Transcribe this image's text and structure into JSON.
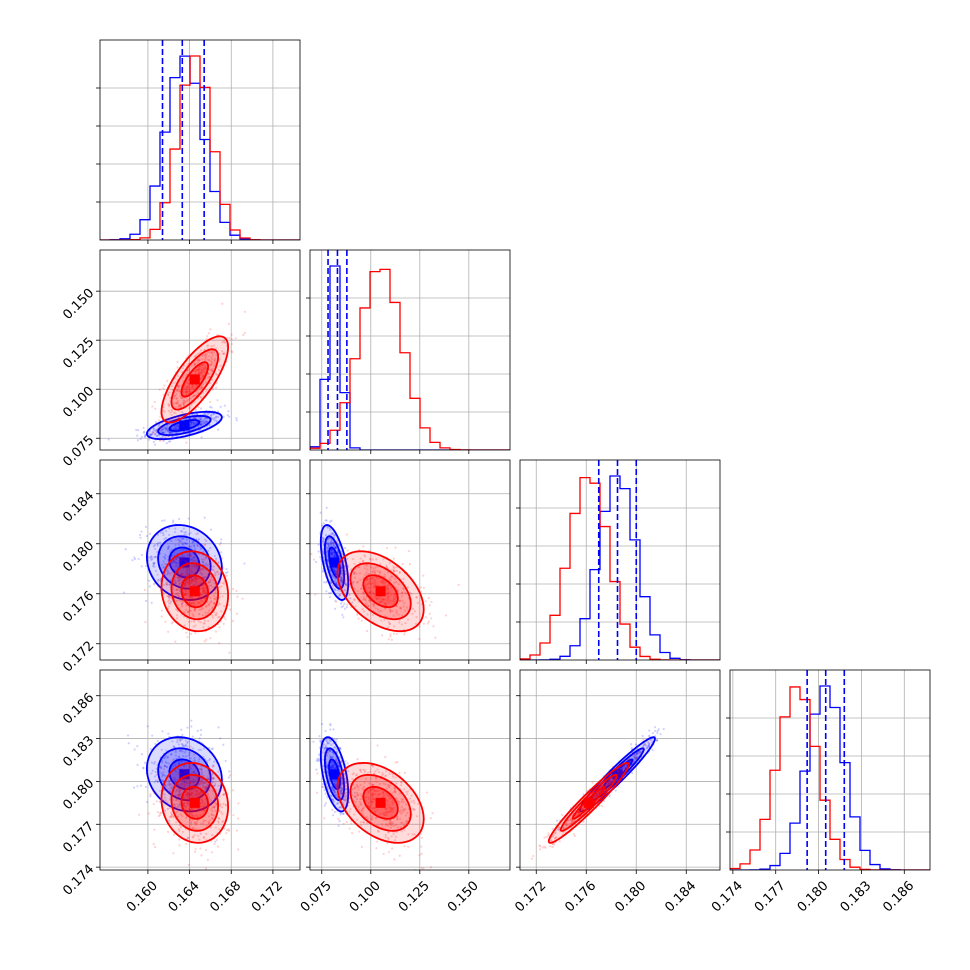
{
  "chart_data": {
    "type": "corner",
    "grid": true,
    "colors": {
      "series_a": "#0000ff",
      "series_b": "#ff0000"
    },
    "params": [
      {
        "id": "p0",
        "range": [
          0.1554,
          0.1746
        ],
        "ticks": [
          0.16,
          0.164,
          0.168,
          0.172
        ],
        "tick_labels": [
          "0.160",
          "0.164",
          "0.168",
          "0.172"
        ]
      },
      {
        "id": "p1",
        "range": [
          0.069,
          0.171
        ],
        "ticks": [
          0.075,
          0.1,
          0.125,
          0.15
        ],
        "tick_labels": [
          "0.075",
          "0.100",
          "0.125",
          "0.150"
        ]
      },
      {
        "id": "p2",
        "range": [
          0.1707,
          0.1867
        ],
        "ticks": [
          0.172,
          0.176,
          0.18,
          0.184
        ],
        "tick_labels": [
          "0.172",
          "0.176",
          "0.180",
          "0.184"
        ]
      },
      {
        "id": "p3",
        "range": [
          0.1738,
          0.1878
        ],
        "ticks": [
          0.174,
          0.177,
          0.18,
          0.183,
          0.186
        ],
        "tick_labels": [
          "0.174",
          "0.177",
          "0.180",
          "0.183",
          "0.186"
        ]
      }
    ],
    "series": [
      {
        "color": "#0000ff",
        "mean": [
          0.1635,
          0.0815,
          0.1785,
          0.1805
        ],
        "std": [
          0.0018,
          0.0035,
          0.0015,
          0.0013
        ],
        "quantiles": [
          [
            0.1614,
            0.1633,
            0.1654
          ],
          [
            0.0782,
            0.083,
            0.0878
          ],
          [
            0.177,
            0.1785,
            0.18
          ],
          [
            0.1792,
            0.1805,
            0.1818
          ]
        ],
        "correlations": {
          "0-1": 0.6,
          "0-2": -0.15,
          "0-3": -0.15,
          "1-2": -0.55,
          "1-3": -0.5,
          "2-3": 0.96
        }
      },
      {
        "color": "#ff0000",
        "mean": [
          0.1645,
          0.105,
          0.1762,
          0.1785
        ],
        "std": [
          0.0016,
          0.011,
          0.0016,
          0.0014
        ],
        "quantiles": [
          [
            0.163,
            0.1645,
            0.166
          ],
          [
            0.096,
            0.105,
            0.115
          ],
          [
            0.1746,
            0.1762,
            0.1778
          ],
          [
            0.1771,
            0.1785,
            0.1799
          ]
        ],
        "correlations": {
          "0-1": 0.75,
          "0-2": -0.1,
          "0-3": -0.1,
          "1-2": -0.45,
          "1-3": -0.4,
          "2-3": 0.96
        }
      }
    ]
  }
}
